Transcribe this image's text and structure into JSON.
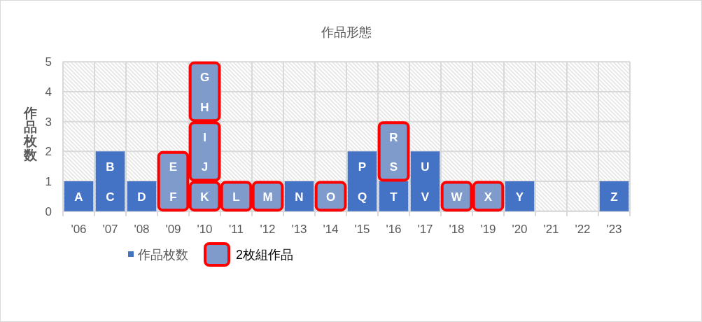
{
  "chart_data": {
    "type": "bar",
    "title": "作品形態",
    "ylabel": "作品枚数",
    "categories": [
      "'06",
      "'07",
      "'08",
      "'09",
      "'10",
      "'11",
      "'12",
      "'13",
      "'14",
      "'15",
      "'16",
      "'17",
      "'18",
      "'19",
      "'20",
      "'21",
      "'22",
      "'23"
    ],
    "stacked": true,
    "series": [
      {
        "name": "作品枚数",
        "color": "#4472c4",
        "values": [
          1,
          2,
          1,
          0,
          0,
          0,
          0,
          1,
          0,
          2,
          1,
          2,
          0,
          0,
          1,
          0,
          0,
          1
        ]
      },
      {
        "name": "2枚組作品",
        "color": "#7f9bcb",
        "values": [
          null,
          null,
          null,
          2,
          1,
          1,
          1,
          null,
          1,
          null,
          2,
          null,
          1,
          1,
          null,
          null,
          null,
          null
        ]
      },
      {
        "color": "#7f9bcb",
        "values": [
          null,
          null,
          null,
          null,
          2,
          null,
          null,
          null,
          null,
          null,
          null,
          null,
          null,
          null,
          null,
          null,
          null,
          null
        ]
      },
      {
        "color": "#7f9bcb",
        "values": [
          null,
          null,
          null,
          null,
          2,
          null,
          null,
          null,
          null,
          null,
          null,
          null,
          null,
          null,
          null,
          null,
          null,
          null
        ]
      }
    ],
    "ylim": [
      0,
      5
    ],
    "yticks": [
      0,
      1,
      2,
      3,
      4,
      5
    ],
    "grid": true,
    "legend": "bottom",
    "annotations": [
      "A",
      "B",
      "C",
      "D",
      "E",
      "F",
      "G",
      "H",
      "I",
      "J",
      "K",
      "L",
      "M",
      "N",
      "O",
      "P",
      "Q",
      "R",
      "S",
      "T",
      "U",
      "V",
      "W",
      "X",
      "Y",
      "Z"
    ]
  }
}
